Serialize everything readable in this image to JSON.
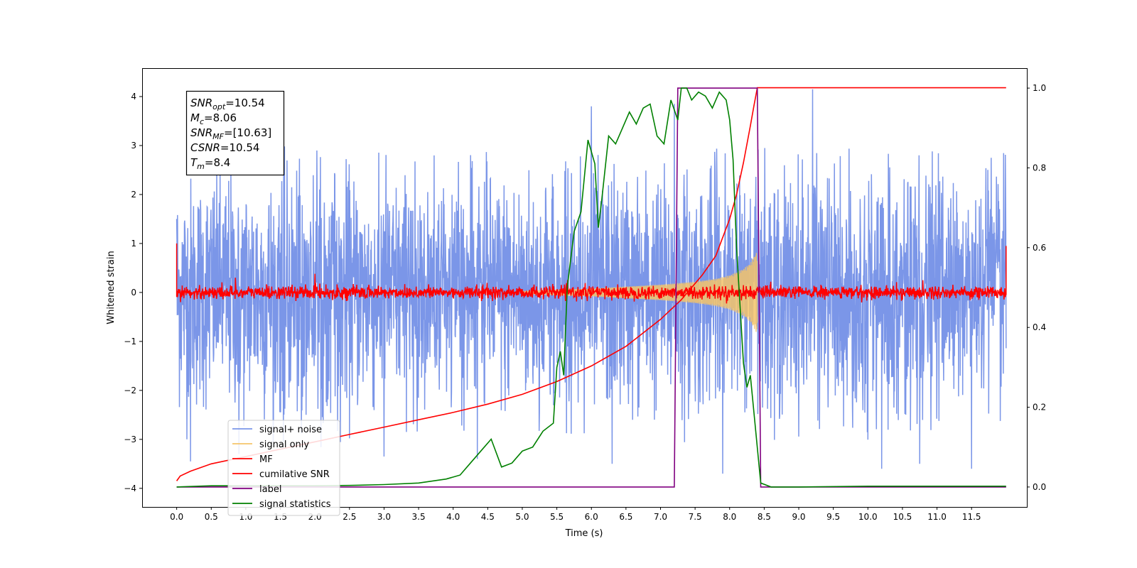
{
  "chart_data": {
    "type": "line",
    "xlabel": "Time (s)",
    "ylabel": "Whitened strain",
    "xlim": [
      -0.5,
      12.3
    ],
    "ylim": [
      -4.38,
      4.58
    ],
    "ylim_right": [
      -0.05,
      1.05
    ],
    "x_ticks": [
      0.0,
      0.5,
      1.0,
      1.5,
      2.0,
      2.5,
      3.0,
      3.5,
      4.0,
      4.5,
      5.0,
      5.5,
      6.0,
      6.5,
      7.0,
      7.5,
      8.0,
      8.5,
      9.0,
      9.5,
      10.0,
      10.5,
      11.0,
      11.5
    ],
    "x_tick_labels": [
      "0.0",
      "0.5",
      "1.0",
      "1.5",
      "2.0",
      "2.5",
      "3.0",
      "3.5",
      "4.0",
      "4.5",
      "5.0",
      "5.5",
      "6.0",
      "6.5",
      "7.0",
      "7.5",
      "8.0",
      "8.5",
      "9.0",
      "9.5",
      "10.0",
      "10.5",
      "11.0",
      "11.5"
    ],
    "y_ticks": [
      -4,
      -3,
      -2,
      -1,
      0,
      1,
      2,
      3,
      4
    ],
    "y_tick_labels": [
      "−4",
      "−3",
      "−2",
      "−1",
      "0",
      "1",
      "2",
      "3",
      "4"
    ],
    "y_ticks_right": [
      0.0,
      0.2,
      0.4,
      0.6,
      0.8,
      1.0
    ],
    "y_tick_labels_right": [
      "0.0",
      "0.2",
      "0.4",
      "0.6",
      "0.8",
      "1.0"
    ],
    "grid": false,
    "legend_position": "lower-left",
    "annotation": {
      "lines": [
        {
          "var": "SNR",
          "sub": "opt",
          "value": "=10.54"
        },
        {
          "var": "M",
          "sub": "c",
          "value": "=8.06"
        },
        {
          "var": "SNR",
          "sub": "MF",
          "value": "=[10.63]"
        },
        {
          "var": "CSNR",
          "sub": "",
          "value": "=10.54"
        },
        {
          "var": "T",
          "sub": "m",
          "value": "=8.4"
        }
      ]
    },
    "series": [
      {
        "name": "signal+ noise",
        "color": "#7b96e8",
        "axis": "left",
        "kind": "noise",
        "x_range": [
          0.0,
          12.0
        ],
        "envelope": {
          "x": [
            0,
            1,
            2,
            3,
            4,
            5,
            5.5,
            6,
            7,
            8,
            9,
            10,
            11,
            12
          ],
          "upper": [
            2.6,
            3.0,
            3.0,
            2.9,
            2.9,
            2.9,
            3.0,
            3.2,
            3.0,
            3.0,
            3.0,
            3.0,
            3.0,
            2.9
          ],
          "lower": [
            -3.3,
            -3.2,
            -3.2,
            -3.0,
            -2.9,
            -3.2,
            -3.0,
            -3.0,
            -3.0,
            -3.2,
            -3.1,
            -3.1,
            -3.0,
            -2.9
          ]
        },
        "peaks": [
          [
            0.2,
            -3.45
          ],
          [
            0.9,
            -3.3
          ],
          [
            3.0,
            -3.35
          ],
          [
            4.35,
            -3.4
          ],
          [
            6.0,
            3.8
          ],
          [
            6.3,
            -3.5
          ],
          [
            7.2,
            3.85
          ],
          [
            7.9,
            -3.7
          ],
          [
            9.2,
            -3.95
          ],
          [
            9.2,
            4.15
          ],
          [
            10.2,
            -3.6
          ],
          [
            10.75,
            -3.5
          ],
          [
            11.5,
            -3.6
          ]
        ]
      },
      {
        "name": "signal only",
        "color": "#f5c46a",
        "axis": "left",
        "kind": "chirp",
        "envelope": {
          "x": [
            5.0,
            5.5,
            6.0,
            6.5,
            7.0,
            7.5,
            7.8,
            8.0,
            8.2,
            8.3,
            8.38,
            8.4
          ],
          "amp": [
            0.03,
            0.06,
            0.08,
            0.12,
            0.16,
            0.22,
            0.28,
            0.35,
            0.48,
            0.6,
            0.8,
            0.85
          ]
        }
      },
      {
        "name": "MF",
        "color": "#ff0000",
        "axis": "left",
        "kind": "mf",
        "x_range": [
          0.0,
          12.0
        ],
        "amplitude": 0.12,
        "endpoints": {
          "start": 1.0,
          "end": 0.95
        },
        "spikes": [
          [
            2.0,
            0.38
          ],
          [
            0.85,
            0.3
          ],
          [
            8.2,
            0.15
          ]
        ]
      },
      {
        "name": "cumilative SNR",
        "color": "#ff0000",
        "axis": "left",
        "kind": "line",
        "x": [
          0.0,
          0.05,
          0.2,
          0.5,
          1.0,
          1.5,
          2.0,
          2.5,
          3.0,
          3.5,
          4.0,
          4.5,
          5.0,
          5.5,
          6.0,
          6.5,
          7.0,
          7.3,
          7.6,
          7.8,
          8.0,
          8.1,
          8.2,
          8.3,
          8.35,
          8.4,
          8.45,
          12.0
        ],
        "y": [
          -3.85,
          -3.75,
          -3.65,
          -3.5,
          -3.35,
          -3.2,
          -3.05,
          -2.9,
          -2.75,
          -2.6,
          -2.45,
          -2.28,
          -2.08,
          -1.82,
          -1.5,
          -1.1,
          -0.55,
          -0.15,
          0.35,
          0.75,
          1.5,
          2.0,
          2.65,
          3.4,
          3.8,
          4.18,
          4.18,
          4.18
        ]
      },
      {
        "name": "label",
        "color": "#800080",
        "axis": "right",
        "kind": "line",
        "x": [
          0.0,
          7.2,
          7.25,
          8.4,
          8.45,
          12.0
        ],
        "y": [
          0.0,
          0.0,
          1.0,
          1.0,
          0.0,
          0.0
        ]
      },
      {
        "name": "signal statistics",
        "color": "#008000",
        "axis": "right",
        "kind": "line",
        "x": [
          0.0,
          0.5,
          1.0,
          1.5,
          2.0,
          2.5,
          3.0,
          3.5,
          3.9,
          4.1,
          4.25,
          4.4,
          4.55,
          4.7,
          4.85,
          5.0,
          5.15,
          5.3,
          5.45,
          5.5,
          5.55,
          5.6,
          5.65,
          5.75,
          5.85,
          5.95,
          6.05,
          6.1,
          6.15,
          6.25,
          6.35,
          6.45,
          6.55,
          6.65,
          6.75,
          6.85,
          6.95,
          7.05,
          7.15,
          7.25,
          7.3,
          7.38,
          7.45,
          7.55,
          7.65,
          7.75,
          7.85,
          7.95,
          8.0,
          8.05,
          8.1,
          8.2,
          8.25,
          8.3,
          8.45,
          8.6,
          9.0,
          10.0,
          11.0,
          12.0
        ],
        "y": [
          0.0,
          0.003,
          0.003,
          0.003,
          0.003,
          0.004,
          0.006,
          0.01,
          0.02,
          0.03,
          0.06,
          0.09,
          0.12,
          0.05,
          0.06,
          0.09,
          0.1,
          0.14,
          0.16,
          0.3,
          0.34,
          0.28,
          0.5,
          0.64,
          0.69,
          0.87,
          0.81,
          0.65,
          0.72,
          0.88,
          0.86,
          0.9,
          0.94,
          0.91,
          0.95,
          0.96,
          0.88,
          0.86,
          0.97,
          0.92,
          1.0,
          1.0,
          0.97,
          0.99,
          0.98,
          0.95,
          0.99,
          0.97,
          0.92,
          0.82,
          0.6,
          0.31,
          0.25,
          0.28,
          0.01,
          0.0,
          0.0,
          0.002,
          0.002,
          0.002
        ]
      }
    ]
  }
}
